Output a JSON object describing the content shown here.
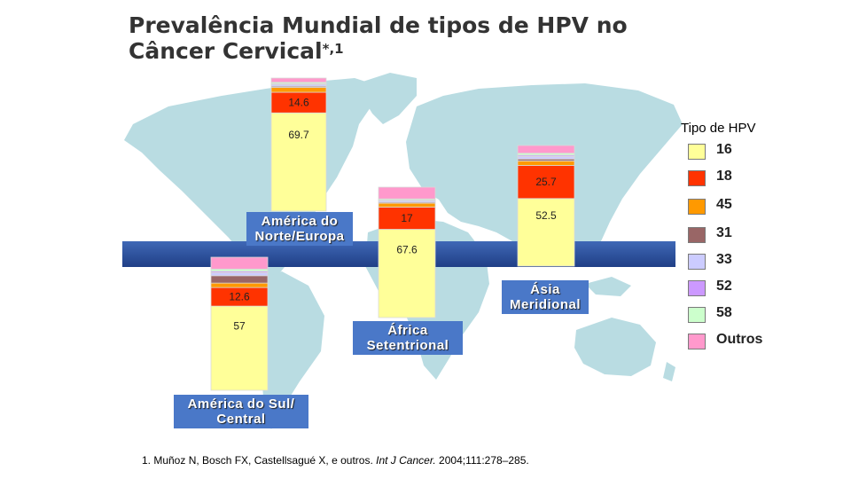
{
  "title": {
    "line1": "Prevalência Mundial de tipos de HPV  no",
    "line2": "Câncer Cervical",
    "superscript": "*,1"
  },
  "legend": {
    "title": "Tipo de HPV",
    "items": [
      {
        "label": "16",
        "color": "#ffff99"
      },
      {
        "label": "18",
        "color": "#ff3300"
      },
      {
        "label": "45",
        "color": "#ff9900"
      },
      {
        "label": "31",
        "color": "#996666"
      },
      {
        "label": "33",
        "color": "#ccccff"
      },
      {
        "label": "52",
        "color": "#cc99ff"
      },
      {
        "label": "58",
        "color": "#ccffcc"
      },
      {
        "label": "Outros",
        "color": "#ff99cc"
      }
    ]
  },
  "chart_data": {
    "type": "bar",
    "stacked": true,
    "series_order": [
      "16",
      "18",
      "45",
      "31",
      "33",
      "52",
      "58",
      "Outros"
    ],
    "regions": [
      {
        "name": "América do Norte/Europa",
        "label_lines": [
          "América do",
          "Norte/Europa"
        ],
        "values": {
          "16": 69.7,
          "18": 14.6,
          "45": 3.5,
          "31": 0.8,
          "33": 1.2,
          "52": 0.6,
          "58": 1.0,
          "Outros": 3.0
        },
        "data_labels": {
          "16": "69.7",
          "18": "14.6"
        }
      },
      {
        "name": "América do Sul/Central",
        "label_lines": [
          "América do Sul/",
          "Central"
        ],
        "values": {
          "16": 57,
          "18": 12.6,
          "45": 3.0,
          "31": 5.0,
          "33": 2.0,
          "52": 1.0,
          "58": 1.5,
          "Outros": 8.0
        },
        "data_labels": {
          "16": "57",
          "18": "12.6"
        }
      },
      {
        "name": "África Setentrional",
        "label_lines": [
          "África",
          "Setentrional"
        ],
        "values": {
          "16": 67.6,
          "18": 17,
          "45": 3.0,
          "31": 0.8,
          "33": 1.2,
          "52": 0.5,
          "58": 0.8,
          "Outros": 9.0
        },
        "data_labels": {
          "16": "67.6",
          "18": "17"
        }
      },
      {
        "name": "Ásia Meridional",
        "label_lines": [
          "Ásia",
          "Meridional"
        ],
        "values": {
          "16": 52.5,
          "18": 25.7,
          "45": 3.5,
          "31": 1.5,
          "33": 2.0,
          "52": 1.0,
          "58": 1.5,
          "Outros": 6.0
        },
        "data_labels": {
          "16": "52.5",
          "18": "25.7"
        }
      }
    ]
  },
  "footnote": {
    "prefix": "1. Muñoz N, Bosch FX, Castellsagué X, e outros. ",
    "journal": "Int J Cancer.",
    "suffix": " 2004;111:278–285."
  }
}
